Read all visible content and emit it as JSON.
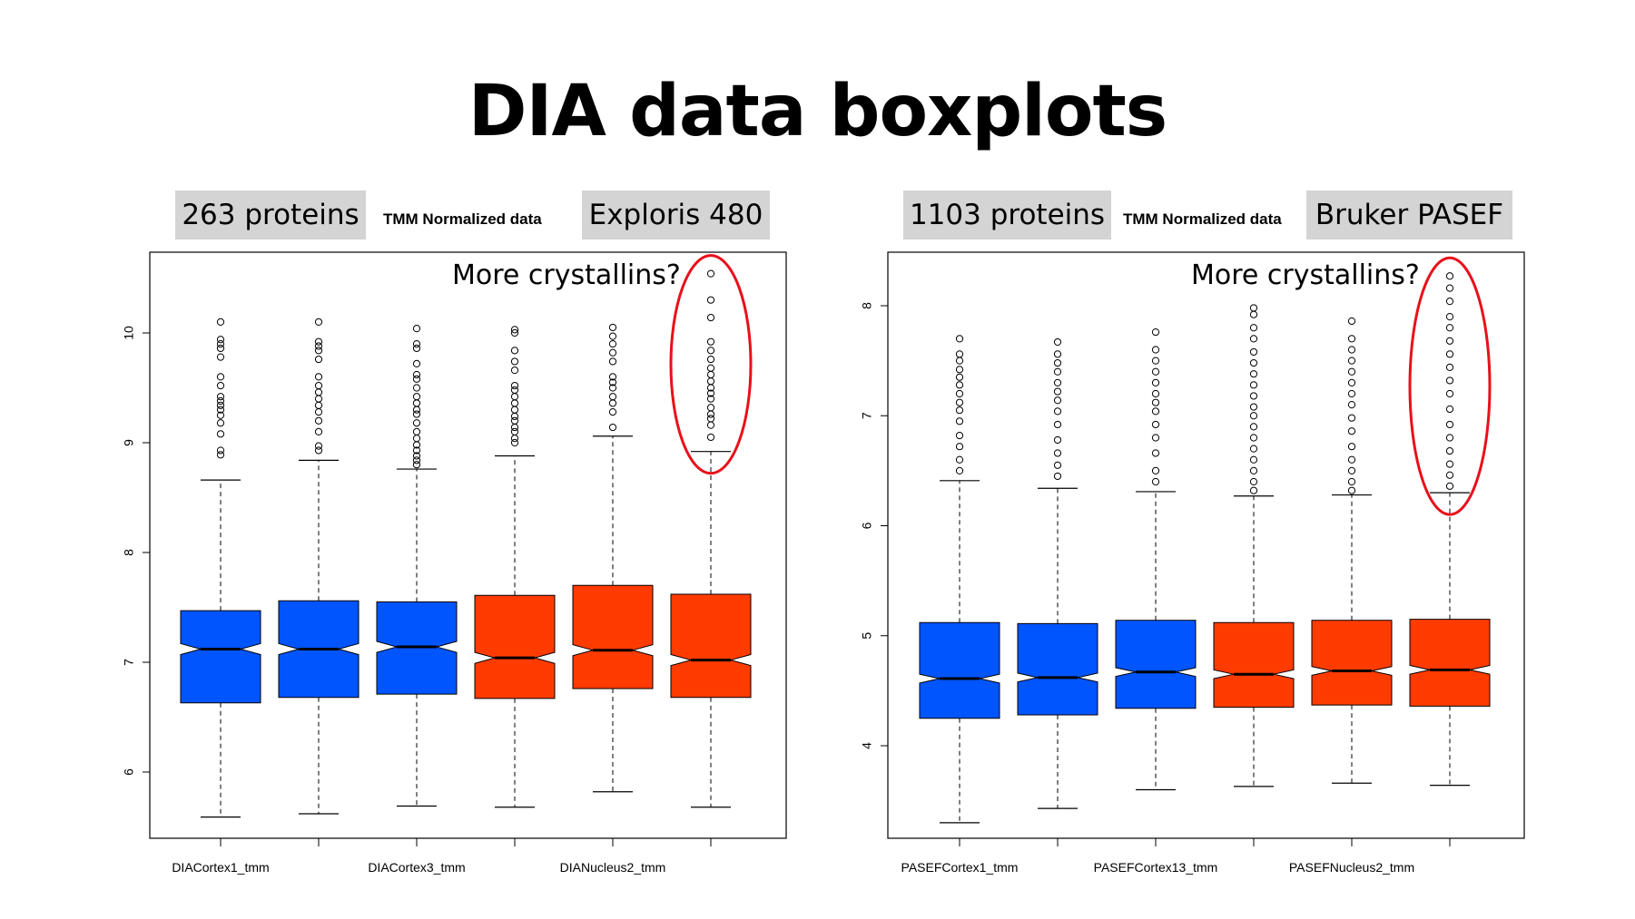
{
  "title": "DIA data boxplots",
  "panels": [
    {
      "protein_count": "263 proteins",
      "normalization": "TMM Normalized data",
      "instrument": "Exploris 480",
      "annotation": "More crystallins?"
    },
    {
      "protein_count": "1103 proteins",
      "normalization": "TMM Normalized data",
      "instrument": "Bruker PASEF",
      "annotation": "More crystallins?"
    }
  ],
  "colors": {
    "cortex": "#0055ff",
    "nucleus": "#ff3b00",
    "highlight": "#e8101a"
  },
  "chart_data": [
    {
      "type": "boxplot",
      "notched": true,
      "ylim": [
        5.4,
        10.8
      ],
      "yticks": [
        6,
        7,
        8,
        9,
        10
      ],
      "categories": [
        "DIACortex1_tmm",
        "",
        "DIACortex3_tmm",
        "",
        "DIANucleus2_tmm",
        ""
      ],
      "tick_labels_shown": [
        "DIACortex1_tmm",
        "DIACortex3_tmm",
        "DIANucleus2_tmm"
      ],
      "boxes": [
        {
          "group": "cortex",
          "q1": 6.63,
          "median": 7.12,
          "q3": 7.47,
          "whisker_low": 5.59,
          "whisker_high": 8.66,
          "notch": 0.05,
          "outliers": [
            8.89,
            8.93,
            9.08,
            9.18,
            9.25,
            9.3,
            9.34,
            9.38,
            9.42,
            9.52,
            9.6,
            9.78,
            9.86,
            9.9,
            9.94,
            10.1
          ]
        },
        {
          "group": "cortex",
          "q1": 6.68,
          "median": 7.12,
          "q3": 7.56,
          "whisker_low": 5.62,
          "whisker_high": 8.84,
          "notch": 0.05,
          "outliers": [
            8.93,
            8.97,
            9.1,
            9.2,
            9.28,
            9.34,
            9.4,
            9.46,
            9.52,
            9.6,
            9.76,
            9.84,
            9.88,
            9.92,
            10.1
          ]
        },
        {
          "group": "cortex",
          "q1": 6.71,
          "median": 7.14,
          "q3": 7.55,
          "whisker_low": 5.69,
          "whisker_high": 8.76,
          "notch": 0.05,
          "outliers": [
            8.8,
            8.84,
            8.88,
            8.93,
            8.98,
            9.04,
            9.1,
            9.18,
            9.26,
            9.3,
            9.36,
            9.42,
            9.5,
            9.58,
            9.62,
            9.72,
            9.86,
            9.9,
            10.04
          ]
        },
        {
          "group": "nucleus",
          "q1": 6.67,
          "median": 7.04,
          "q3": 7.61,
          "whisker_low": 5.68,
          "whisker_high": 8.88,
          "notch": 0.05,
          "outliers": [
            9.0,
            9.04,
            9.1,
            9.14,
            9.2,
            9.24,
            9.3,
            9.36,
            9.42,
            9.48,
            9.52,
            9.66,
            9.74,
            9.84,
            10.0,
            10.03
          ]
        },
        {
          "group": "nucleus",
          "q1": 6.76,
          "median": 7.11,
          "q3": 7.7,
          "whisker_low": 5.82,
          "whisker_high": 9.06,
          "notch": 0.05,
          "outliers": [
            9.14,
            9.28,
            9.36,
            9.42,
            9.5,
            9.55,
            9.6,
            9.74,
            9.82,
            9.9,
            9.97,
            10.05
          ]
        },
        {
          "group": "nucleus",
          "q1": 6.68,
          "median": 7.02,
          "q3": 7.62,
          "whisker_low": 5.68,
          "whisker_high": 8.92,
          "notch": 0.05,
          "outliers": [
            9.05,
            9.16,
            9.22,
            9.26,
            9.32,
            9.4,
            9.45,
            9.5,
            9.56,
            9.62,
            9.68,
            9.76,
            9.84,
            9.92,
            10.14,
            10.3,
            10.54
          ]
        }
      ]
    },
    {
      "type": "boxplot",
      "notched": true,
      "ylim": [
        3.15,
        8.5
      ],
      "yticks": [
        4,
        5,
        6,
        7,
        8
      ],
      "categories": [
        "PASEFCortex1_tmm",
        "",
        "PASEFCortex13_tmm",
        "",
        "PASEFNucleus2_tmm",
        ""
      ],
      "tick_labels_shown": [
        "PASEFCortex1_tmm",
        "PASEFCortex13_tmm",
        "PASEFNucleus2_tmm"
      ],
      "boxes": [
        {
          "group": "cortex",
          "q1": 4.25,
          "median": 4.61,
          "q3": 5.12,
          "whisker_low": 3.3,
          "whisker_high": 6.41,
          "notch": 0.04,
          "outliers": [
            6.5,
            6.6,
            6.72,
            6.82,
            6.95,
            7.05,
            7.12,
            7.2,
            7.28,
            7.35,
            7.42,
            7.5,
            7.56,
            7.7
          ]
        },
        {
          "group": "cortex",
          "q1": 4.28,
          "median": 4.62,
          "q3": 5.11,
          "whisker_low": 3.43,
          "whisker_high": 6.34,
          "notch": 0.04,
          "outliers": [
            6.45,
            6.55,
            6.66,
            6.78,
            6.92,
            7.04,
            7.14,
            7.22,
            7.3,
            7.4,
            7.48,
            7.56,
            7.67
          ]
        },
        {
          "group": "cortex",
          "q1": 4.34,
          "median": 4.67,
          "q3": 5.14,
          "whisker_low": 3.6,
          "whisker_high": 6.31,
          "notch": 0.04,
          "outliers": [
            6.4,
            6.5,
            6.66,
            6.8,
            6.92,
            7.04,
            7.12,
            7.2,
            7.3,
            7.4,
            7.5,
            7.6,
            7.76
          ]
        },
        {
          "group": "nucleus",
          "q1": 4.35,
          "median": 4.65,
          "q3": 5.12,
          "whisker_low": 3.63,
          "whisker_high": 6.27,
          "notch": 0.04,
          "outliers": [
            6.32,
            6.4,
            6.5,
            6.6,
            6.7,
            6.8,
            6.9,
            7.0,
            7.08,
            7.18,
            7.28,
            7.38,
            7.48,
            7.58,
            7.7,
            7.8,
            7.92,
            7.98
          ]
        },
        {
          "group": "nucleus",
          "q1": 4.37,
          "median": 4.68,
          "q3": 5.14,
          "whisker_low": 3.66,
          "whisker_high": 6.28,
          "notch": 0.04,
          "outliers": [
            6.32,
            6.4,
            6.5,
            6.6,
            6.72,
            6.86,
            6.98,
            7.1,
            7.2,
            7.3,
            7.4,
            7.5,
            7.6,
            7.7,
            7.86
          ]
        },
        {
          "group": "nucleus",
          "q1": 4.36,
          "median": 4.69,
          "q3": 5.15,
          "whisker_low": 3.64,
          "whisker_high": 6.3,
          "notch": 0.04,
          "outliers": [
            6.36,
            6.46,
            6.56,
            6.68,
            6.8,
            6.92,
            7.06,
            7.2,
            7.32,
            7.44,
            7.56,
            7.68,
            7.8,
            7.9,
            8.04,
            8.16,
            8.27
          ]
        }
      ]
    }
  ]
}
